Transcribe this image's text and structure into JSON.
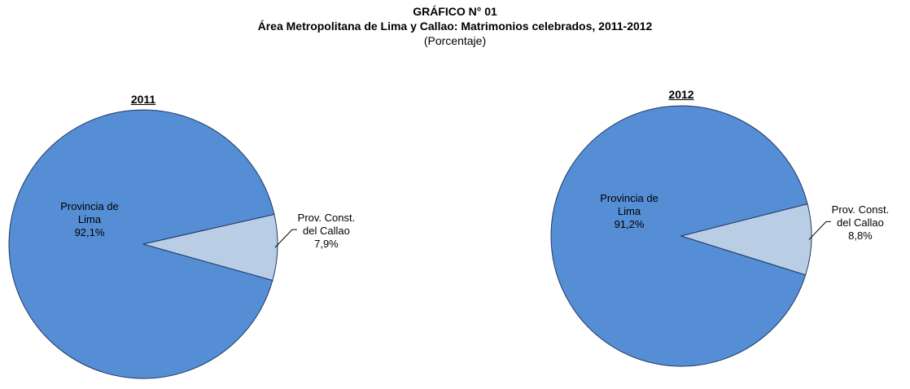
{
  "title": "GRÁFICO N° 01",
  "subtitle": "Área Metropolitana de Lima y Callao: Matrimonios celebrados, 2011-2012",
  "note": "(Porcentaje)",
  "chart_data": [
    {
      "type": "pie",
      "title": "2011",
      "categories": [
        "Provincia de Lima",
        "Prov. Const. del Callao"
      ],
      "values": [
        92.1,
        7.9
      ],
      "value_labels": [
        "92,1%",
        "7,9%"
      ],
      "colors": [
        "#558ed5",
        "#b9cde5"
      ]
    },
    {
      "type": "pie",
      "title": "2012",
      "categories": [
        "Provincia de Lima",
        "Prov. Const. del Callao"
      ],
      "values": [
        91.2,
        8.8
      ],
      "value_labels": [
        "91,2%",
        "8,8%"
      ],
      "colors": [
        "#558ed5",
        "#b9cde5"
      ]
    }
  ]
}
